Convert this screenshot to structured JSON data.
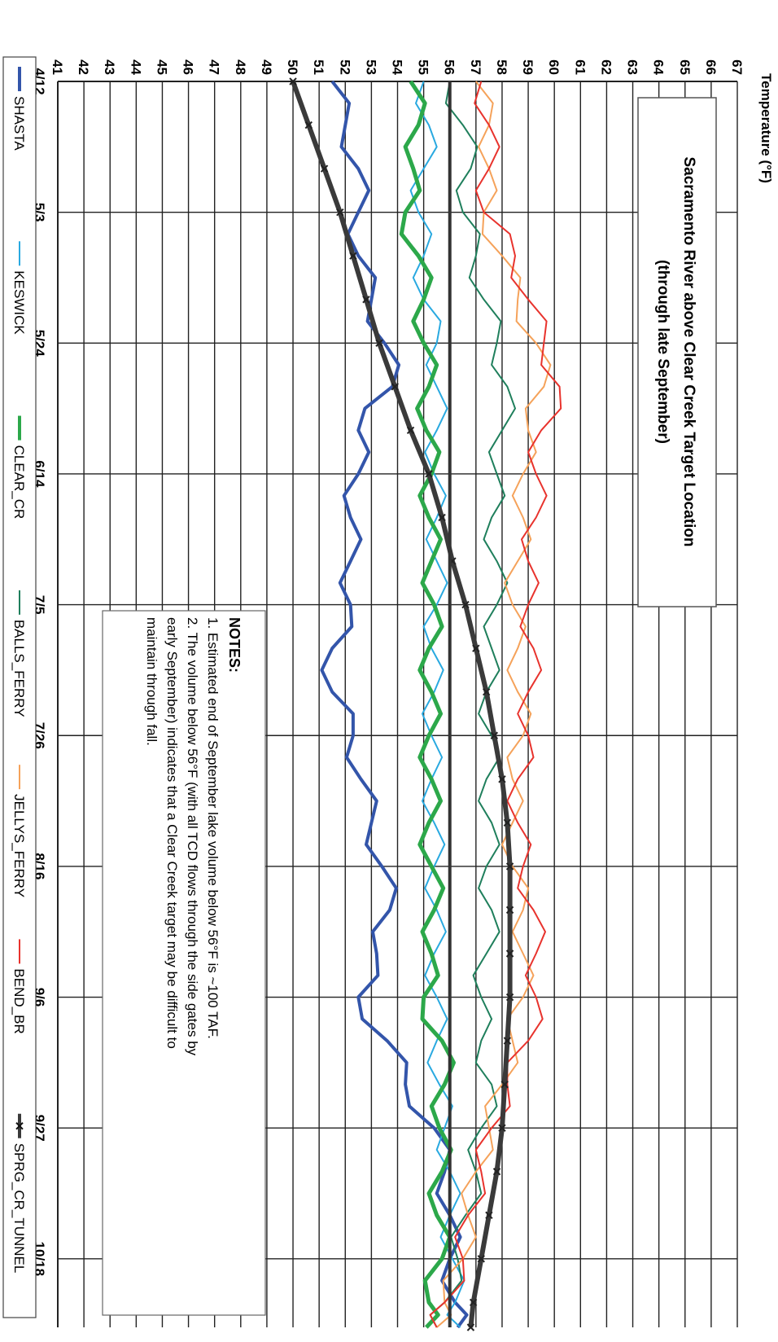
{
  "chart_data": {
    "type": "line",
    "title": "Sacramento River above Clear Creek Target Location",
    "subtitle": "(through late September)",
    "ylabel": "Temperature (°F)",
    "xlabel": "",
    "ylim": [
      41,
      67
    ],
    "y_ticks": [
      "41",
      "42",
      "43",
      "44",
      "45",
      "46",
      "47",
      "48",
      "49",
      "50",
      "51",
      "52",
      "53",
      "54",
      "55",
      "56",
      "57",
      "58",
      "59",
      "60",
      "61",
      "62",
      "63",
      "64",
      "65",
      "66",
      "67"
    ],
    "x_ticks": [
      "4/12",
      "5/3",
      "5/24",
      "6/14",
      "7/5",
      "7/26",
      "8/16",
      "9/6",
      "9/27",
      "10/18"
    ],
    "x_ticks_day": [
      0,
      21,
      42,
      63,
      84,
      105,
      126,
      147,
      168,
      189
    ],
    "target_line": 56,
    "grid": true,
    "legend_position": "bottom",
    "x": [
      0,
      7,
      14,
      21,
      28,
      35,
      42,
      49,
      56,
      63,
      70,
      77,
      84,
      91,
      98,
      105,
      112,
      119,
      126,
      133,
      140,
      147,
      154,
      161,
      168,
      175,
      182,
      189,
      196,
      200
    ],
    "series": [
      {
        "name": "SHASTA",
        "color": "#3355aa",
        "width": 4,
        "values": [
          51.5,
          52,
          52.5,
          52.5,
          52.5,
          53,
          53.5,
          53.8,
          52.5,
          52.5,
          52.2,
          52.2,
          52.2,
          51.5,
          51.5,
          52.3,
          52.6,
          53,
          53.4,
          53.7,
          53.2,
          52.5,
          53.6,
          54.3,
          55.4,
          55.8,
          56,
          56,
          56.2,
          56.3
        ]
      },
      {
        "name": "KESWICK",
        "color": "#29a9e0",
        "width": 2,
        "values": [
          55,
          55.2,
          55,
          54.8,
          55,
          55,
          55.5,
          55.5,
          55.5,
          55.4,
          55.5,
          55.5,
          55.5,
          55.3,
          55.4,
          55.3,
          55.3,
          55.4,
          55.4,
          55.5,
          55.4,
          55.5,
          55.5,
          55.6,
          55.8,
          56,
          56,
          56.1,
          56.2,
          56.4
        ]
      },
      {
        "name": "CLEAR_CR",
        "color": "#2ca84a",
        "width": 5,
        "values": [
          54.5,
          54.8,
          54.6,
          54.3,
          54.8,
          55,
          55,
          55.2,
          55.1,
          55.3,
          55.2,
          55.3,
          55.4,
          55.2,
          55.3,
          55.2,
          55.3,
          55.2,
          55.3,
          55.4,
          55.3,
          55,
          55.7,
          55.8,
          55.6,
          55.7,
          55.5,
          55.7,
          55.2,
          55.1
        ]
      },
      {
        "name": "BALLS_FERRY",
        "color": "#1f7f5c",
        "width": 2,
        "values": [
          56,
          56.5,
          56.8,
          56.5,
          57,
          57.3,
          57.8,
          58.2,
          58,
          57.8,
          57.6,
          57.8,
          57.8,
          57.6,
          57.4,
          57.6,
          57.4,
          57.6,
          57.4,
          57.6,
          57.4,
          57.2,
          57.2,
          57.6,
          57.2,
          57,
          56.6,
          56.3,
          55.8,
          55.5
        ]
      },
      {
        "name": "JELLYS_FERRY",
        "color": "#f5a25a",
        "width": 2,
        "values": [
          57,
          57.5,
          57.5,
          57.3,
          58,
          58.6,
          59.3,
          59.6,
          59,
          58.8,
          58.8,
          58.6,
          58.4,
          58.6,
          58.6,
          58.8,
          58.4,
          58.4,
          58.4,
          58.8,
          58.8,
          58.8,
          58.4,
          58,
          57.5,
          57,
          56.7,
          56.5,
          55.8,
          55.5
        ]
      },
      {
        "name": "BEND_BR",
        "color": "#e8332d",
        "width": 2,
        "values": [
          57.2,
          57.5,
          57.5,
          57.3,
          58.5,
          59,
          59.6,
          60.2,
          59.5,
          59.3,
          59.3,
          59,
          59,
          59.2,
          59,
          59,
          58.6,
          58.6,
          58.8,
          59.2,
          59.3,
          59.3,
          59,
          58.2,
          57.6,
          57.2,
          56.7,
          56.5,
          55.8,
          55.5
        ]
      },
      {
        "name": "SPRG_CR_TUNNEL",
        "color": "#3a3a3a",
        "width": 6,
        "values": [
          50,
          50.6,
          51.2,
          51.8,
          52.3,
          52.8,
          53.3,
          53.9,
          54.5,
          55.2,
          55.7,
          56.1,
          56.6,
          57,
          57.4,
          57.7,
          58,
          58.2,
          58.3,
          58.3,
          58.3,
          58.3,
          58.2,
          58.1,
          58,
          57.8,
          57.5,
          57.2,
          56.9,
          56.8
        ]
      }
    ],
    "notes": {
      "heading": "NOTES:",
      "lines": [
        "1. Estimated end of September lake volume below 56°F is ~100 TAF.",
        "2. The volume below 56°F (with all TCD flows through the side gates by",
        "early September) indicates that a Clear Creek target may be difficult to",
        "maintain through fall."
      ]
    }
  }
}
